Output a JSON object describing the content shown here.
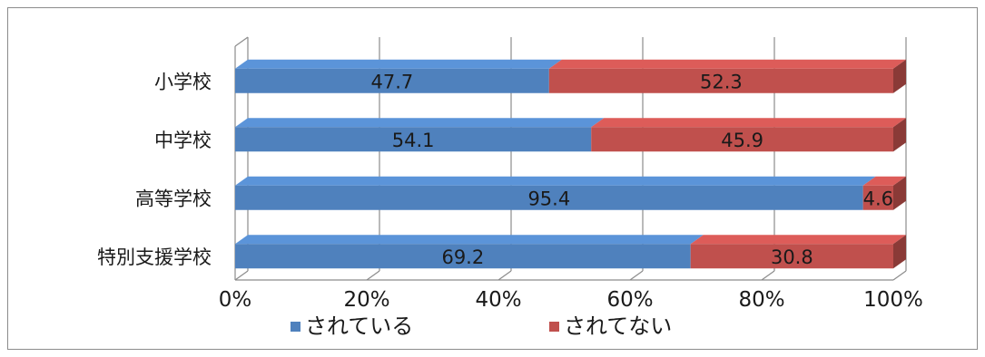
{
  "chart_data": {
    "type": "bar",
    "orientation": "horizontal",
    "stacked": "percent",
    "style": "3d",
    "categories": [
      "小学校",
      "中学校",
      "高等学校",
      "特別支援学校"
    ],
    "series": [
      {
        "name": "されている",
        "values": [
          47.7,
          54.1,
          95.4,
          69.2
        ],
        "color": "#4f81bd"
      },
      {
        "name": "されてない",
        "values": [
          52.3,
          45.9,
          4.6,
          30.8
        ],
        "color": "#c0504d"
      }
    ],
    "x_ticks": [
      "0%",
      "20%",
      "40%",
      "60%",
      "80%",
      "100%"
    ],
    "xlim": [
      0,
      100
    ],
    "grid": true,
    "legend_position": "bottom"
  }
}
